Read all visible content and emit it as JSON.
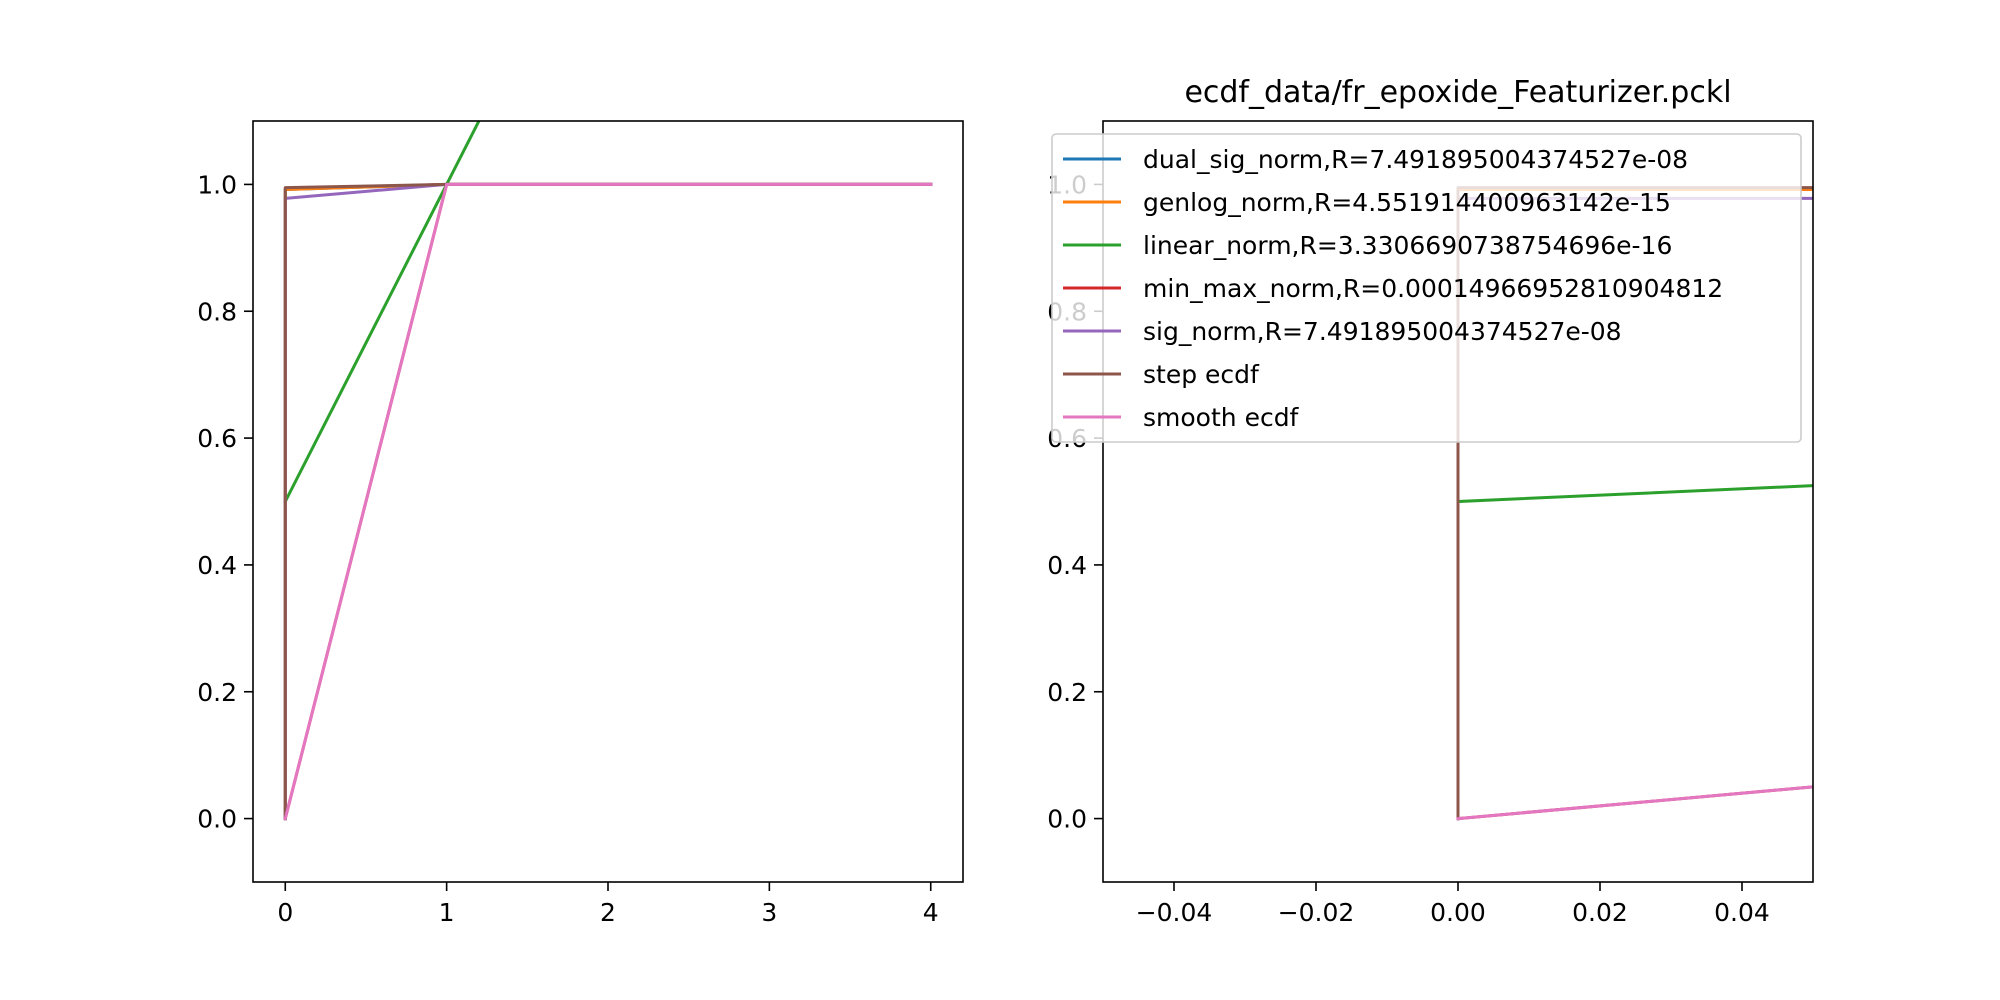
{
  "figure": {
    "background": "#ffffff"
  },
  "chart_data": [
    {
      "type": "line",
      "title": "",
      "xlabel": "",
      "ylabel": "",
      "xlim": [
        -0.2,
        4.2
      ],
      "ylim": [
        -0.1,
        1.1
      ],
      "xticks": [
        0,
        1,
        2,
        3,
        4
      ],
      "xtick_labels": [
        "0",
        "1",
        "2",
        "3",
        "4"
      ],
      "yticks": [
        0.0,
        0.2,
        0.4,
        0.6,
        0.8,
        1.0
      ],
      "ytick_labels": [
        "0.0",
        "0.2",
        "0.4",
        "0.6",
        "0.8",
        "1.0"
      ],
      "grid": false,
      "legend": false,
      "series": [
        {
          "key": "dual_sig_norm",
          "color": "#1f77b4",
          "x": [
            0,
            0,
            1,
            4
          ],
          "y": [
            0.0,
            0.992,
            1.0,
            1.0
          ]
        },
        {
          "key": "genlog_norm",
          "color": "#ff7f0e",
          "x": [
            0,
            0,
            1,
            4
          ],
          "y": [
            0.0,
            0.992,
            1.0,
            1.0
          ]
        },
        {
          "key": "linear_norm",
          "color": "#2ca02c",
          "x": [
            0,
            1.25
          ],
          "y": [
            0.5,
            1.125
          ]
        },
        {
          "key": "min_max_norm",
          "color": "#d62728",
          "x": [
            0,
            1,
            4
          ],
          "y": [
            0.0,
            1.0,
            1.0
          ]
        },
        {
          "key": "sig_norm",
          "color": "#9467bd",
          "x": [
            0,
            0,
            1,
            4
          ],
          "y": [
            0.0,
            0.978,
            1.0,
            1.0
          ]
        },
        {
          "key": "step_ecdf",
          "color": "#8c564b",
          "x": [
            0,
            0,
            1,
            4
          ],
          "y": [
            0.0,
            0.995,
            1.0,
            1.0
          ]
        },
        {
          "key": "smooth_ecdf",
          "color": "#e377c2",
          "x": [
            0,
            1,
            4
          ],
          "y": [
            0.0,
            1.0,
            1.0
          ]
        }
      ]
    },
    {
      "type": "line",
      "title": "ecdf_data/fr_epoxide_Featurizer.pckl",
      "xlabel": "",
      "ylabel": "",
      "xlim": [
        -0.05,
        0.05
      ],
      "ylim": [
        -0.1,
        1.1
      ],
      "xticks": [
        -0.04,
        -0.02,
        0.0,
        0.02,
        0.04
      ],
      "xtick_labels": [
        "−0.04",
        "−0.02",
        "0.00",
        "0.02",
        "0.04"
      ],
      "yticks": [
        0.0,
        0.2,
        0.4,
        0.6,
        0.8,
        1.0
      ],
      "ytick_labels": [
        "0.0",
        "0.2",
        "0.4",
        "0.6",
        "0.8",
        "1.0"
      ],
      "grid": false,
      "legend": true,
      "legend_position": "upper-right",
      "legend_entries": [
        {
          "label": "dual_sig_norm,R=7.491895004374527e-08",
          "color": "#1f77b4"
        },
        {
          "label": "genlog_norm,R=4.551914400963142e-15",
          "color": "#ff7f0e"
        },
        {
          "label": "linear_norm,R=3.3306690738754696e-16",
          "color": "#2ca02c"
        },
        {
          "label": "min_max_norm,R=0.00014966952810904812",
          "color": "#d62728"
        },
        {
          "label": "sig_norm,R=7.491895004374527e-08",
          "color": "#9467bd"
        },
        {
          "label": "step ecdf",
          "color": "#8c564b"
        },
        {
          "label": "smooth ecdf",
          "color": "#e377c2"
        }
      ],
      "series": [
        {
          "key": "dual_sig_norm",
          "color": "#1f77b4",
          "x": [
            0,
            0,
            0.05
          ],
          "y": [
            0.0,
            0.992,
            0.992
          ]
        },
        {
          "key": "genlog_norm",
          "color": "#ff7f0e",
          "x": [
            0,
            0,
            0.05
          ],
          "y": [
            0.0,
            0.992,
            0.992
          ]
        },
        {
          "key": "linear_norm",
          "color": "#2ca02c",
          "x": [
            0,
            0.05
          ],
          "y": [
            0.5,
            0.525
          ]
        },
        {
          "key": "min_max_norm",
          "color": "#d62728",
          "x": [
            0,
            0.05
          ],
          "y": [
            0.0,
            0.05
          ]
        },
        {
          "key": "sig_norm",
          "color": "#9467bd",
          "x": [
            0,
            0,
            0.05
          ],
          "y": [
            0.0,
            0.978,
            0.978
          ]
        },
        {
          "key": "step_ecdf",
          "color": "#8c564b",
          "x": [
            0,
            0,
            0.05
          ],
          "y": [
            0.0,
            0.995,
            0.995
          ]
        },
        {
          "key": "smooth_ecdf",
          "color": "#e377c2",
          "x": [
            0,
            0.05
          ],
          "y": [
            0.0,
            0.05
          ]
        }
      ]
    }
  ]
}
